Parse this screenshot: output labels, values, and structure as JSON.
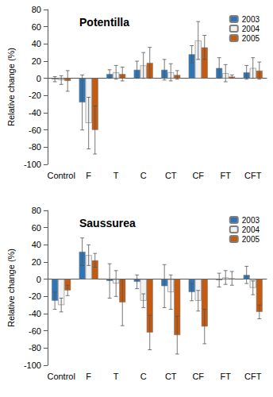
{
  "chart_data": [
    {
      "type": "bar",
      "title": "Potentilla",
      "y_label": "Relative change (%)",
      "categories": [
        "Control",
        "F",
        "T",
        "C",
        "CT",
        "CF",
        "FT",
        "CFT"
      ],
      "series": [
        {
          "name": "2003",
          "color": "#2e75b6",
          "values": [
            -1,
            -28,
            5,
            10,
            10,
            28,
            12,
            7
          ],
          "errors": [
            3,
            32,
            5,
            10,
            12,
            10,
            12,
            8
          ]
        },
        {
          "name": "2004",
          "color": "#f2f2f2",
          "values": [
            -2,
            -52,
            7,
            15,
            7,
            44,
            6,
            12
          ],
          "errors": [
            5,
            30,
            8,
            15,
            10,
            22,
            10,
            12
          ]
        },
        {
          "name": "2005",
          "color": "#c55a11",
          "values": [
            -3,
            -60,
            5,
            18,
            4,
            36,
            2,
            9
          ],
          "errors": [
            12,
            28,
            8,
            18,
            5,
            14,
            2,
            10
          ]
        }
      ],
      "ylim": [
        -100,
        80
      ],
      "yticks": [
        -100,
        -80,
        -60,
        -40,
        -20,
        0,
        20,
        40,
        60,
        80
      ],
      "legend": "upper right",
      "grid": false
    },
    {
      "type": "bar",
      "title": "Saussurea",
      "y_label": "Relative change (%)",
      "categories": [
        "Control",
        "F",
        "T",
        "C",
        "CT",
        "CF",
        "FT",
        "CFT"
      ],
      "series": [
        {
          "name": "2003",
          "color": "#2e75b6",
          "values": [
            -25,
            32,
            -2,
            -3,
            -8,
            -15,
            -1,
            5
          ],
          "errors": [
            10,
            16,
            20,
            8,
            25,
            10,
            8,
            10
          ]
        },
        {
          "name": "2004",
          "color": "#f2f2f2",
          "values": [
            -30,
            28,
            -5,
            -25,
            -15,
            -25,
            2,
            -10
          ],
          "errors": [
            8,
            12,
            15,
            8,
            20,
            12,
            8,
            8
          ]
        },
        {
          "name": "2005",
          "color": "#c55a11",
          "values": [
            -13,
            22,
            -27,
            -62,
            -65,
            -55,
            1,
            -38
          ],
          "errors": [
            6,
            8,
            27,
            20,
            22,
            20,
            8,
            8
          ]
        }
      ],
      "ylim": [
        -100,
        80
      ],
      "yticks": [
        -100,
        -80,
        -60,
        -40,
        -20,
        0,
        20,
        40,
        60,
        80
      ],
      "legend": "upper right",
      "grid": false
    }
  ]
}
